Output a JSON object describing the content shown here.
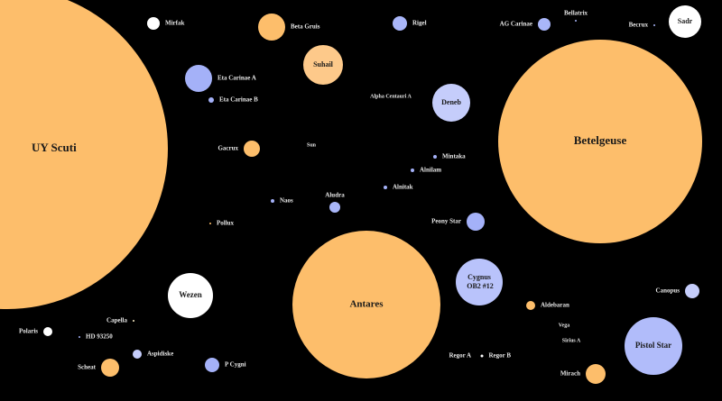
{
  "nodes": [
    {
      "label": "UY Scuti",
      "color": "#fdbe6b"
    },
    {
      "label": "Mirfak",
      "color": "#ffffff"
    },
    {
      "label": "Beta Gruis",
      "color": "#fdbe6b"
    },
    {
      "label": "Rigel",
      "color": "#a9b6f9"
    },
    {
      "label": "AG Carinae",
      "color": "#a9b6f9"
    },
    {
      "label": "Bellatrix",
      "color": "#a9b6f9"
    },
    {
      "label": "Becrux",
      "color": "#a9b6f9"
    },
    {
      "label": "Sadr",
      "color": "#ffffff"
    },
    {
      "label": "Eta Carinae A",
      "color": "#a4b1f8"
    },
    {
      "label": "Eta Carinae B",
      "color": "#a4b1f8"
    },
    {
      "label": "Suhail",
      "color": "#fdc98a"
    },
    {
      "label": "Alpha Centauri A",
      "color": "#ffffff"
    },
    {
      "label": "Deneb",
      "color": "#c5cdfb"
    },
    {
      "label": "Betelgeuse",
      "color": "#fdbe6b"
    },
    {
      "label": "Gacrux",
      "color": "#fdbe6b"
    },
    {
      "label": "Sun",
      "color": "#ffffff"
    },
    {
      "label": "Mintaka",
      "color": "#a4b1f8"
    },
    {
      "label": "Alnilam",
      "color": "#a4b1f8"
    },
    {
      "label": "Alnitak",
      "color": "#a4b1f8"
    },
    {
      "label": "Naos",
      "color": "#a4b1f8"
    },
    {
      "label": "Aludra",
      "color": "#a9b6f9"
    },
    {
      "label": "Peony Star",
      "color": "#a4b1f8"
    },
    {
      "label": "Pollux",
      "color": "#fdbe6b"
    },
    {
      "label": "Antares",
      "color": "#fdbe6b"
    },
    {
      "label": "Cygnus OB2 #12",
      "color": "#b9c3fb"
    },
    {
      "label": "Aldebaran",
      "color": "#fdbe6b"
    },
    {
      "label": "Canopus",
      "color": "#c5cdfb"
    },
    {
      "label": "Wezen",
      "color": "#ffffff"
    },
    {
      "label": "Capella",
      "color": "#fdf1c8"
    },
    {
      "label": "Polaris",
      "color": "#ffffff"
    },
    {
      "label": "HD 93250",
      "color": "#a4b1f8"
    },
    {
      "label": "Vega",
      "color": "#ffffff"
    },
    {
      "label": "Sirius A",
      "color": "#ffffff"
    },
    {
      "label": "Pistol Star",
      "color": "#b1bcfa"
    },
    {
      "label": "Aspidiske",
      "color": "#c5cdfb"
    },
    {
      "label": "Scheat",
      "color": "#fdbe6b"
    },
    {
      "label": "P Cygni",
      "color": "#a4b1f8"
    },
    {
      "label": "Regor A",
      "color": "#ffffff"
    },
    {
      "label": "Regor B",
      "color": "#ffffff"
    },
    {
      "label": "Mirach",
      "color": "#fdbe6b"
    }
  ]
}
